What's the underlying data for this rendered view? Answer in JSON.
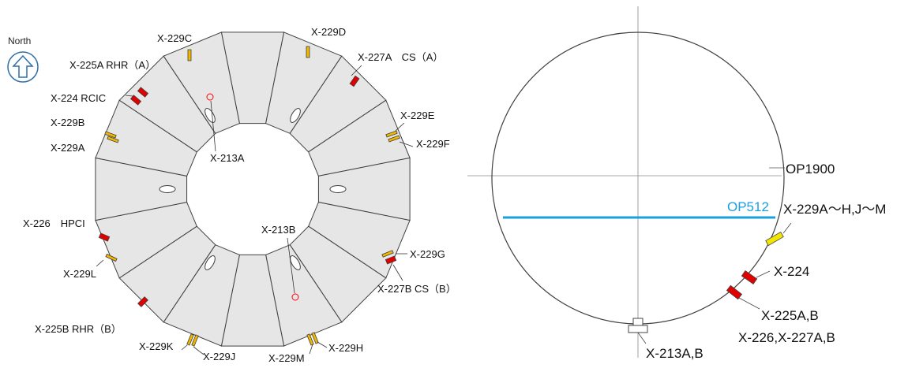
{
  "compass": {
    "label": "North",
    "icon": "up-arrow-icon"
  },
  "colors": {
    "segment_fill": "#e6e6e6",
    "outline": "#404040",
    "red_penetration": "#e00000",
    "yellow_penetration": "#f2b800",
    "op512_line": "#1aa0e0",
    "small_circle": "#ff0000",
    "crosshair": "#888888"
  },
  "torus_labels": {
    "x229c": "X-229C",
    "x229d": "X-229D",
    "x227a": "X-227A　CS（A）",
    "x225a": "X-225A RHR（A）",
    "x224": "X-224 RCIC",
    "x229e": "X-229E",
    "x229b": "X-229B",
    "x229f": "X-229F",
    "x229a": "X-229A",
    "x213a": "X-213A",
    "x226": "X-226　HPCI",
    "x213b": "X-213B",
    "x229g": "X-229G",
    "x229l": "X-229L",
    "x227b": "X-227B CS（B）",
    "x225b": "X-225B RHR（B）",
    "x229k": "X-229K",
    "x229j": "X-229J",
    "x229m": "X-229M",
    "x229h": "X-229H"
  },
  "section_labels": {
    "op1900": "OP1900",
    "op512": "OP512",
    "x229group": "X-229A～H,J～M",
    "x224": "X-224",
    "x225ab": "X-225A,B",
    "x226_227": "X-226,X-227A,B",
    "x213ab": "X-213A,B"
  }
}
